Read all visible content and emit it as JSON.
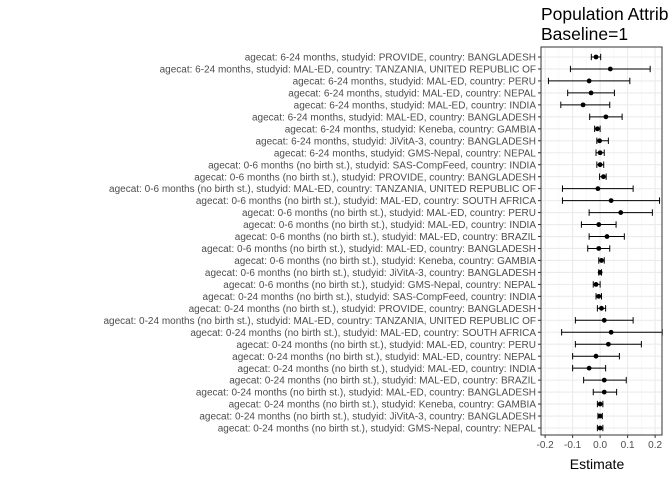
{
  "chart_data": {
    "type": "forest",
    "title_line1": "Population Attrib",
    "title_line2": "Baseline=1",
    "xlabel": "Estimate",
    "ylabel": "",
    "xlim": [
      -0.215,
      0.225
    ],
    "xticks": [
      -0.2,
      -0.1,
      0.0,
      0.1,
      0.2
    ],
    "xtick_labels": [
      "-0.2",
      "-0.1",
      "0.0",
      "0.1",
      "0.2"
    ],
    "grid": true,
    "legend": "none",
    "rows": [
      {
        "label": "agecat: 6-24 months, studyid: PROVIDE, country: BANGLADESH",
        "estimate": -0.015,
        "lower": -0.032,
        "upper": 0.002
      },
      {
        "label": "agecat: 6-24 months, studyid: MAL-ED, country: TANZANIA, UNITED REPUBLIC OF",
        "estimate": 0.037,
        "lower": -0.108,
        "upper": 0.182
      },
      {
        "label": "agecat: 6-24 months, studyid: MAL-ED, country: PERU",
        "estimate": -0.04,
        "lower": -0.188,
        "upper": 0.108
      },
      {
        "label": "agecat: 6-24 months, studyid: MAL-ED, country: NEPAL",
        "estimate": -0.033,
        "lower": -0.118,
        "upper": 0.052
      },
      {
        "label": "agecat: 6-24 months, studyid: MAL-ED, country: INDIA",
        "estimate": -0.062,
        "lower": -0.143,
        "upper": 0.035
      },
      {
        "label": "agecat: 6-24 months, studyid: MAL-ED, country: BANGLADESH",
        "estimate": 0.021,
        "lower": -0.038,
        "upper": 0.08
      },
      {
        "label": "agecat: 6-24 months, studyid: Keneba, country: GAMBIA",
        "estimate": -0.01,
        "lower": -0.02,
        "upper": 0.0
      },
      {
        "label": "agecat: 6-24 months, studyid: JiVitA-3, country: BANGLADESH",
        "estimate": -0.002,
        "lower": -0.012,
        "upper": 0.03
      },
      {
        "label": "agecat: 6-24 months, studyid: GMS-Nepal, country: NEPAL",
        "estimate": 0.0,
        "lower": -0.015,
        "upper": 0.015
      },
      {
        "label": "agecat: 0-6 months (no birth st.), studyid: SAS-CompFeed, country: INDIA",
        "estimate": 0.0,
        "lower": -0.012,
        "upper": 0.013
      },
      {
        "label": "agecat: 0-6 months (no birth st.), studyid: PROVIDE, country: BANGLADESH",
        "estimate": 0.012,
        "lower": -0.002,
        "upper": 0.022
      },
      {
        "label": "agecat: 0-6 months (no birth st.), studyid: MAL-ED, country: TANZANIA, UNITED REPUBLIC OF",
        "estimate": -0.008,
        "lower": -0.137,
        "upper": 0.12
      },
      {
        "label": "agecat: 0-6 months (no birth st.), studyid: MAL-ED, country: SOUTH AFRICA",
        "estimate": 0.04,
        "lower": -0.137,
        "upper": 0.216
      },
      {
        "label": "agecat: 0-6 months (no birth st.), studyid: MAL-ED, country: PERU",
        "estimate": 0.075,
        "lower": -0.04,
        "upper": 0.19
      },
      {
        "label": "agecat: 0-6 months (no birth st.), studyid: MAL-ED, country: INDIA",
        "estimate": -0.005,
        "lower": -0.068,
        "upper": 0.058
      },
      {
        "label": "agecat: 0-6 months (no birth st.), studyid: MAL-ED, country: BRAZIL",
        "estimate": 0.025,
        "lower": -0.04,
        "upper": 0.088
      },
      {
        "label": "agecat: 0-6 months (no birth st.), studyid: MAL-ED, country: BANGLADESH",
        "estimate": -0.005,
        "lower": -0.045,
        "upper": 0.035
      },
      {
        "label": "agecat: 0-6 months (no birth st.), studyid: Keneba, country: GAMBIA",
        "estimate": 0.005,
        "lower": -0.005,
        "upper": 0.015
      },
      {
        "label": "agecat: 0-6 months (no birth st.), studyid: JiVitA-3, country: BANGLADESH",
        "estimate": 0.0,
        "lower": -0.005,
        "upper": 0.005
      },
      {
        "label": "agecat: 0-6 months (no birth st.), studyid: GMS-Nepal, country: NEPAL",
        "estimate": -0.015,
        "lower": -0.025,
        "upper": 0.0
      },
      {
        "label": "agecat: 0-24 months (no birth st.), studyid: SAS-CompFeed, country: INDIA",
        "estimate": -0.005,
        "lower": -0.015,
        "upper": 0.005
      },
      {
        "label": "agecat: 0-24 months (no birth st.), studyid: PROVIDE, country: BANGLADESH",
        "estimate": 0.005,
        "lower": -0.01,
        "upper": 0.02
      },
      {
        "label": "agecat: 0-24 months (no birth st.), studyid: MAL-ED, country: TANZANIA, UNITED REPUBLIC OF",
        "estimate": 0.015,
        "lower": -0.09,
        "upper": 0.12
      },
      {
        "label": "agecat: 0-24 months (no birth st.), studyid: MAL-ED, country: SOUTH AFRICA",
        "estimate": 0.04,
        "lower": -0.14,
        "upper": 0.226
      },
      {
        "label": "agecat: 0-24 months (no birth st.), studyid: MAL-ED, country: PERU",
        "estimate": 0.03,
        "lower": -0.09,
        "upper": 0.15
      },
      {
        "label": "agecat: 0-24 months (no birth st.), studyid: MAL-ED, country: NEPAL",
        "estimate": -0.015,
        "lower": -0.1,
        "upper": 0.07
      },
      {
        "label": "agecat: 0-24 months (no birth st.), studyid: MAL-ED, country: INDIA",
        "estimate": -0.04,
        "lower": -0.1,
        "upper": 0.02
      },
      {
        "label": "agecat: 0-24 months (no birth st.), studyid: MAL-ED, country: BRAZIL",
        "estimate": 0.015,
        "lower": -0.06,
        "upper": 0.095
      },
      {
        "label": "agecat: 0-24 months (no birth st.), studyid: MAL-ED, country: BANGLADESH",
        "estimate": 0.015,
        "lower": -0.025,
        "upper": 0.06
      },
      {
        "label": "agecat: 0-24 months (no birth st.), studyid: Keneba, country: GAMBIA",
        "estimate": 0.0,
        "lower": -0.01,
        "upper": 0.01
      },
      {
        "label": "agecat: 0-24 months (no birth st.), studyid: JiVitA-3, country: BANGLADESH",
        "estimate": 0.0,
        "lower": -0.008,
        "upper": 0.008
      },
      {
        "label": "agecat: 0-24 months (no birth st.), studyid: GMS-Nepal, country: NEPAL",
        "estimate": 0.0,
        "lower": -0.01,
        "upper": 0.01
      }
    ]
  },
  "colors": {
    "panel_bg": "#ffffff",
    "grid_major": "#ebebeb",
    "grid_minor": "#f5f5f5",
    "panel_border": "#333333",
    "tick_text": "#4d4d4d",
    "title_text": "#000000",
    "point": "#000000"
  }
}
